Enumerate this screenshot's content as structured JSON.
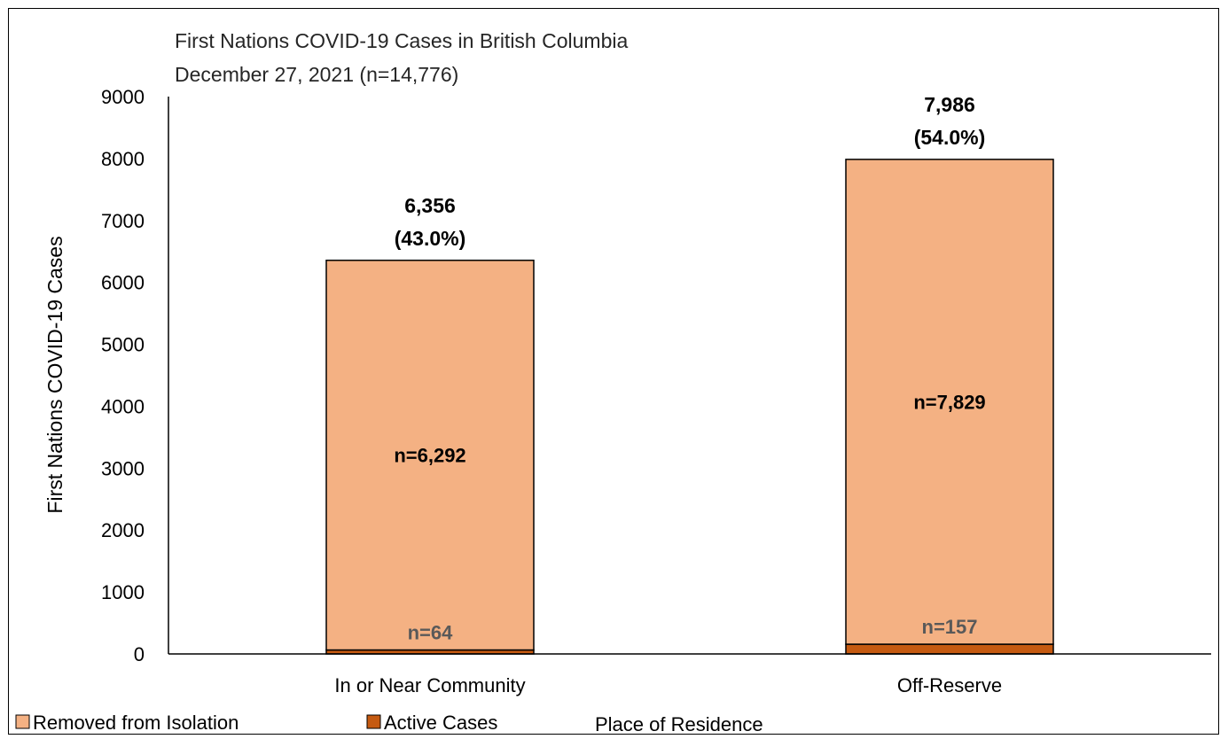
{
  "chart_data": {
    "type": "bar",
    "stacked": true,
    "title": "First Nations COVID-19 Cases in British Columbia",
    "subtitle": "December 27, 2021 (n=14,776)",
    "xlabel": "Place of Residence",
    "ylabel": "First Nations COVID-19 Cases",
    "ylim": [
      0,
      9000
    ],
    "yticks": [
      "0",
      "1000",
      "2000",
      "3000",
      "4000",
      "5000",
      "6000",
      "7000",
      "8000",
      "9000"
    ],
    "grid": false,
    "legend_position": "bottom-left",
    "categories": [
      "In or Near Community",
      "Off-Reserve"
    ],
    "series": [
      {
        "name": "Active Cases",
        "values": [
          64,
          157
        ],
        "labels": [
          "n=64",
          "n=157"
        ],
        "color": "#C55A11"
      },
      {
        "name": "Removed from Isolation",
        "values": [
          6292,
          7829
        ],
        "labels": [
          "n=6,292",
          "n=7,829"
        ],
        "color": "#F4B183"
      }
    ],
    "totals": {
      "values": [
        6356,
        7986
      ],
      "labels": [
        "6,356",
        "7,986"
      ],
      "percent_labels": [
        "(43.0%)",
        "(54.0%)"
      ]
    },
    "legend": [
      {
        "name": "Removed from Isolation",
        "color": "#F4B183"
      },
      {
        "name": "Active Cases",
        "color": "#C55A11"
      }
    ]
  }
}
